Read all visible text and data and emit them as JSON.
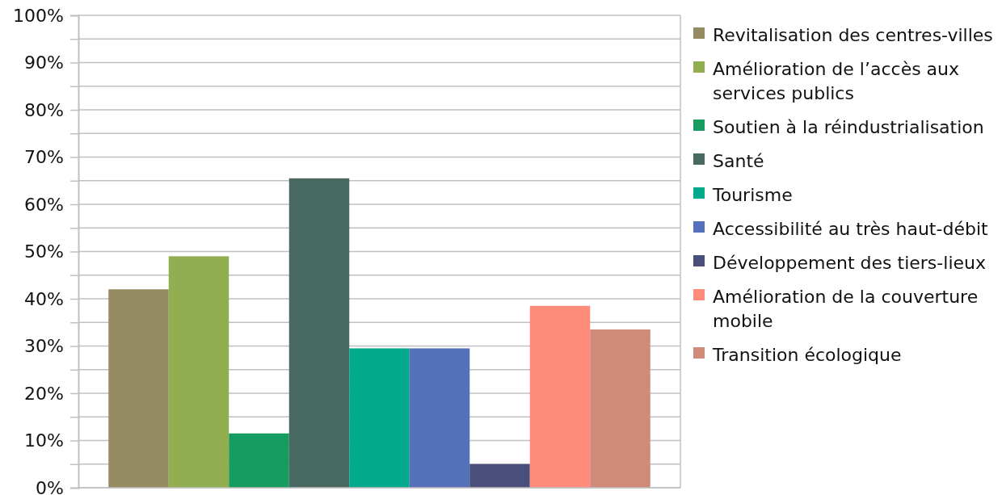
{
  "chart_data": {
    "type": "bar",
    "categories": [
      null
    ],
    "series": [
      {
        "name": "Revitalisation des centres-villes",
        "color": "#958b62",
        "values": [
          42
        ]
      },
      {
        "name": "Amélioration de l’accès aux services publics",
        "color": "#91ae50",
        "values": [
          49
        ]
      },
      {
        "name": "Soutien à la réindustrialisation",
        "color": "#179b60",
        "values": [
          11.5
        ]
      },
      {
        "name": "Santé",
        "color": "#476961",
        "values": [
          65.5
        ]
      },
      {
        "name": "Tourisme",
        "color": "#02a98a",
        "values": [
          29.5
        ]
      },
      {
        "name": "Accessibilité au très haut-débit",
        "color": "#5671bb",
        "values": [
          29.5
        ]
      },
      {
        "name": "Développement des tiers-lieux",
        "color": "#4a4e7a",
        "values": [
          5
        ]
      },
      {
        "name": "Amélioration de la couverture mobile",
        "color": "#ff8b7b",
        "values": [
          38.5
        ]
      },
      {
        "name": "Transition écologique",
        "color": "#d08a78",
        "values": [
          33.5
        ]
      }
    ],
    "ylim": [
      0,
      100
    ],
    "yticks": [
      {
        "value": 0,
        "label": "0%"
      },
      {
        "value": 5,
        "label": null
      },
      {
        "value": 10,
        "label": "10%"
      },
      {
        "value": 15,
        "label": null
      },
      {
        "value": 20,
        "label": "20%"
      },
      {
        "value": 25,
        "label": null
      },
      {
        "value": 30,
        "label": "30%"
      },
      {
        "value": 35,
        "label": null
      },
      {
        "value": 40,
        "label": "40%"
      },
      {
        "value": 45,
        "label": null
      },
      {
        "value": 50,
        "label": "50%"
      },
      {
        "value": 55,
        "label": null
      },
      {
        "value": 60,
        "label": "60%"
      },
      {
        "value": 65,
        "label": null
      },
      {
        "value": 70,
        "label": "70%"
      },
      {
        "value": 75,
        "label": null
      },
      {
        "value": 80,
        "label": "80%"
      },
      {
        "value": 85,
        "label": null
      },
      {
        "value": 90,
        "label": "90%"
      },
      {
        "value": 95,
        "label": null
      },
      {
        "value": 100,
        "label": "100%"
      }
    ],
    "grid": true,
    "legend": "right"
  }
}
